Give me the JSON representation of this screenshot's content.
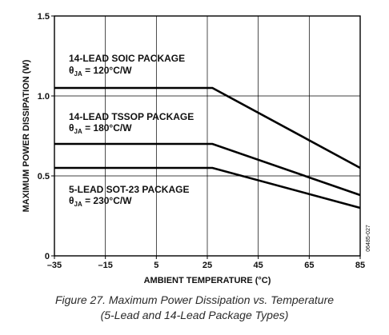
{
  "chart_data": {
    "type": "line",
    "ylabel": "MAXIMUM POWER DISSIPATION (W)",
    "xlabel": "AMBIENT TEMPERATURE (°C)",
    "xlim": [
      -35,
      85
    ],
    "ylim": [
      0,
      1.5
    ],
    "x_ticks": [
      -35,
      -15,
      5,
      25,
      45,
      65,
      85
    ],
    "x_tick_labels": [
      "–35",
      "–15",
      "5",
      "25",
      "45",
      "65",
      "85"
    ],
    "y_ticks": [
      0,
      0.5,
      1.0,
      1.5
    ],
    "y_tick_labels": [
      "0",
      "0.5",
      "1.0",
      "1.5"
    ],
    "grid": true,
    "series": [
      {
        "name": "14-LEAD SOIC PACKAGE",
        "theta_label": "θJA = 120°C/W",
        "x": [
          -35,
          27,
          85
        ],
        "y": [
          1.05,
          1.05,
          0.55
        ]
      },
      {
        "name": "14-LEAD TSSOP PACKAGE",
        "theta_label": "θJA = 180°C/W",
        "x": [
          -35,
          27,
          85
        ],
        "y": [
          0.7,
          0.7,
          0.38
        ]
      },
      {
        "name": "5-LEAD SOT-23 PACKAGE",
        "theta_label": "θJA = 230°C/W",
        "x": [
          -35,
          27,
          85
        ],
        "y": [
          0.55,
          0.55,
          0.3
        ]
      }
    ],
    "figure_id": "06485-027"
  },
  "caption": {
    "line1": "Figure 27. Maximum Power Dissipation vs. Temperature",
    "line2": "(5-Lead and 14-Lead Package Types)"
  }
}
